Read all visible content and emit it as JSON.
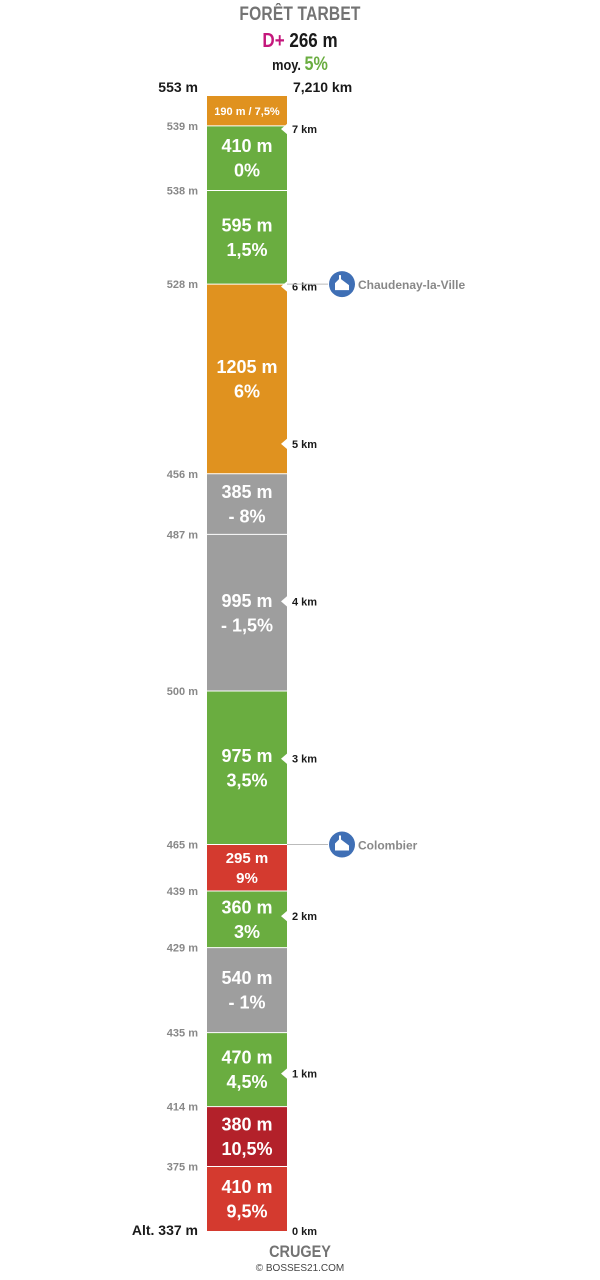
{
  "header": {
    "title": "FORÊT TARBET",
    "dplus_prefix": "D+",
    "dplus_value": "266 m",
    "moy_label": "moy.",
    "moy_value": "5%"
  },
  "top_altitude": "553 m",
  "top_distance": "7,210 km",
  "footer": {
    "place": "CRUGEY",
    "copyright": "© BOSSES21.COM"
  },
  "colors": {
    "orange": "#e0921f",
    "green": "#6aad40",
    "gray": "#9e9e9e",
    "red": "#d43a2f",
    "darkred": "#b3212a",
    "marker": "#3f6fb5"
  },
  "chart_data": {
    "type": "table",
    "title": "FORÊT TARBET",
    "total_distance_km": 7.21,
    "total_distance_label": "7,210 km",
    "segments": [
      {
        "length_m": 410,
        "grade": "9,5%",
        "length_label": "410 m",
        "color": "red",
        "alt_start_label": "Alt. 337 m"
      },
      {
        "length_m": 380,
        "grade": "10,5%",
        "length_label": "380 m",
        "color": "darkred",
        "alt_start_label": "375 m"
      },
      {
        "length_m": 470,
        "grade": "4,5%",
        "length_label": "470 m",
        "color": "green",
        "alt_start_label": "414 m"
      },
      {
        "length_m": 540,
        "grade": "- 1%",
        "length_label": "540 m",
        "color": "gray",
        "alt_start_label": "435 m"
      },
      {
        "length_m": 360,
        "grade": "3%",
        "length_label": "360 m",
        "color": "green",
        "alt_start_label": "429 m"
      },
      {
        "length_m": 295,
        "grade": "9%",
        "length_label": "295 m",
        "color": "red",
        "alt_start_label": "439 m"
      },
      {
        "length_m": 975,
        "grade": "3,5%",
        "length_label": "975 m",
        "color": "green",
        "alt_start_label": "465 m"
      },
      {
        "length_m": 995,
        "grade": "- 1,5%",
        "length_label": "995 m",
        "color": "gray",
        "alt_start_label": "500 m"
      },
      {
        "length_m": 385,
        "grade": "- 8%",
        "length_label": "385 m",
        "color": "gray",
        "alt_start_label": "487 m"
      },
      {
        "length_m": 1205,
        "grade": "6%",
        "length_label": "1205 m",
        "color": "orange",
        "alt_start_label": "456 m"
      },
      {
        "length_m": 595,
        "grade": "1,5%",
        "length_label": "595 m",
        "color": "green",
        "alt_start_label": "528 m"
      },
      {
        "length_m": 410,
        "grade": "0%",
        "length_label": "410 m",
        "color": "green",
        "alt_start_label": "538 m"
      },
      {
        "length_m": 190,
        "grade": "7,5%",
        "length_label": "190 m / 7,5%",
        "color": "orange",
        "alt_start_label": "539 m"
      }
    ],
    "km_markers": [
      {
        "km": 0,
        "label": "0 km"
      },
      {
        "km": 1,
        "label": "1 km"
      },
      {
        "km": 2,
        "label": "2 km"
      },
      {
        "km": 3,
        "label": "3 km"
      },
      {
        "km": 4,
        "label": "4 km"
      },
      {
        "km": 5,
        "label": "5 km"
      },
      {
        "km": 6,
        "label": "6 km"
      },
      {
        "km": 7,
        "label": "7 km"
      }
    ],
    "villages": [
      {
        "name": "Colombier",
        "at_segment_end": 5
      },
      {
        "name": "Chaudenay-la-Ville",
        "at_segment_end": 9
      }
    ]
  }
}
